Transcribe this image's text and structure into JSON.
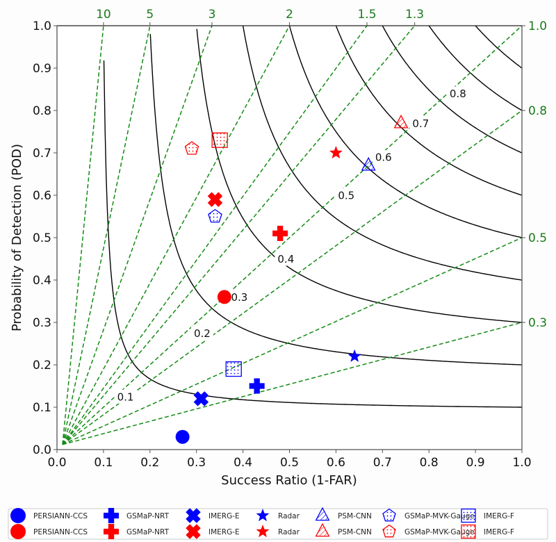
{
  "chart_data": {
    "type": "scatter",
    "subtype": "performance-diagram",
    "title": "",
    "xlabel": "Success Ratio (1-FAR)",
    "ylabel": "Probability of Detection (POD)",
    "xlim": [
      0.0,
      1.0
    ],
    "ylim": [
      0.0,
      1.0
    ],
    "xticks": [
      "0.0",
      "0.1",
      "0.2",
      "0.3",
      "0.4",
      "0.5",
      "0.6",
      "0.7",
      "0.8",
      "0.9",
      "1.0"
    ],
    "yticks": [
      "0.0",
      "0.1",
      "0.2",
      "0.3",
      "0.4",
      "0.5",
      "0.6",
      "0.7",
      "0.8",
      "0.9",
      "1.0"
    ],
    "grid": false,
    "csi_contours": {
      "values": [
        0.1,
        0.2,
        0.3,
        0.4,
        0.5,
        0.6,
        0.7,
        0.8,
        0.9
      ],
      "labels": [
        "0.1",
        "0.2",
        "0.3",
        "0.4",
        "0.5",
        "0.6",
        "0.7",
        "0.8"
      ],
      "color": "#000000"
    },
    "bias_lines": {
      "values": [
        10,
        5,
        3,
        2,
        1.5,
        1.3,
        1.0,
        0.8,
        0.5,
        0.3
      ],
      "top_labels": [
        "10",
        "5",
        "3",
        "2",
        "1.5",
        "1.3"
      ],
      "right_labels": [
        "1.0",
        "0.8",
        "0.5",
        "0.3"
      ],
      "color": "#138a13",
      "style": "dashed"
    },
    "series": [
      {
        "name": "PERSIANN-CCS",
        "marker": "circle",
        "color": "#0000ff",
        "hatch": "",
        "x": 0.27,
        "y": 0.03
      },
      {
        "name": "PERSIANN-CCS",
        "marker": "circle",
        "color": "#ff0000",
        "hatch": "",
        "x": 0.36,
        "y": 0.36
      },
      {
        "name": "GSMaP-NRT",
        "marker": "plus",
        "color": "#0000ff",
        "hatch": "",
        "x": 0.43,
        "y": 0.15
      },
      {
        "name": "GSMaP-NRT",
        "marker": "plus",
        "color": "#ff0000",
        "hatch": "",
        "x": 0.48,
        "y": 0.51
      },
      {
        "name": "IMERG-E",
        "marker": "x",
        "color": "#0000ff",
        "hatch": "",
        "x": 0.31,
        "y": 0.12
      },
      {
        "name": "IMERG-E",
        "marker": "x",
        "color": "#ff0000",
        "hatch": "",
        "x": 0.34,
        "y": 0.59
      },
      {
        "name": "Radar",
        "marker": "star",
        "color": "#0000ff",
        "hatch": "",
        "x": 0.64,
        "y": 0.22
      },
      {
        "name": "Radar",
        "marker": "star",
        "color": "#ff0000",
        "hatch": "",
        "x": 0.6,
        "y": 0.7
      },
      {
        "name": "PSM-CNN",
        "marker": "triangle",
        "color": "#0000ff",
        "hatch": "diagonal",
        "x": 0.67,
        "y": 0.67
      },
      {
        "name": "PSM-CNN",
        "marker": "triangle",
        "color": "#ff0000",
        "hatch": "diagonal",
        "x": 0.74,
        "y": 0.77
      },
      {
        "name": "GSMaP-MVK-Gauge",
        "marker": "pentagon",
        "color": "#0000ff",
        "hatch": "dots",
        "x": 0.34,
        "y": 0.55
      },
      {
        "name": "GSMaP-MVK-Gauge",
        "marker": "pentagon",
        "color": "#ff0000",
        "hatch": "dots",
        "x": 0.29,
        "y": 0.71
      },
      {
        "name": "IMERG-F",
        "marker": "square",
        "color": "#0000ff",
        "hatch": "dots",
        "x": 0.38,
        "y": 0.19
      },
      {
        "name": "IMERG-F",
        "marker": "square",
        "color": "#ff0000",
        "hatch": "dots",
        "x": 0.35,
        "y": 0.73
      }
    ],
    "legend": {
      "placement": "bottom",
      "ncol": 7,
      "entries": [
        {
          "label": "PERSIANN-CCS",
          "marker": "circle",
          "color": "#0000ff"
        },
        {
          "label": "PERSIANN-CCS",
          "marker": "circle",
          "color": "#ff0000"
        },
        {
          "label": "GSMaP-NRT",
          "marker": "plus",
          "color": "#0000ff"
        },
        {
          "label": "GSMaP-NRT",
          "marker": "plus",
          "color": "#ff0000"
        },
        {
          "label": "IMERG-E",
          "marker": "x",
          "color": "#0000ff"
        },
        {
          "label": "IMERG-E",
          "marker": "x",
          "color": "#ff0000"
        },
        {
          "label": "Radar",
          "marker": "star",
          "color": "#0000ff"
        },
        {
          "label": "Radar",
          "marker": "star",
          "color": "#ff0000"
        },
        {
          "label": "PSM-CNN",
          "marker": "triangle",
          "color": "#0000ff"
        },
        {
          "label": "PSM-CNN",
          "marker": "triangle",
          "color": "#ff0000"
        },
        {
          "label": "GSMaP-MVK-Gauge",
          "marker": "pentagon",
          "color": "#0000ff"
        },
        {
          "label": "GSMaP-MVK-Gauge",
          "marker": "pentagon",
          "color": "#ff0000"
        },
        {
          "label": "IMERG-F",
          "marker": "square",
          "color": "#0000ff"
        },
        {
          "label": "IMERG-F",
          "marker": "square",
          "color": "#ff0000"
        }
      ]
    }
  }
}
